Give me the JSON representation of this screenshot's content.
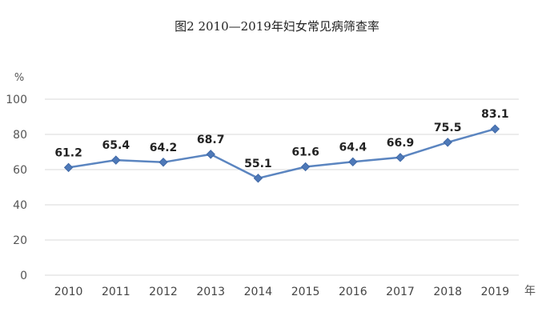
{
  "chart_data": {
    "type": "line",
    "title": "图2      2010—2019年妇女常见病筛查率",
    "y_unit": "%",
    "x_unit": "年",
    "categories": [
      "2010",
      "2011",
      "2012",
      "2013",
      "2014",
      "2015",
      "2016",
      "2017",
      "2018",
      "2019"
    ],
    "series": [
      {
        "values": [
          61.2,
          65.4,
          64.2,
          68.7,
          55.1,
          61.6,
          64.4,
          66.9,
          75.5,
          83.1
        ]
      }
    ],
    "data_labels": [
      "61.2",
      "65.4",
      "64.2",
      "68.7",
      "55.1",
      "61.6",
      "64.4",
      "66.9",
      "75.5",
      "83.1"
    ],
    "ylim": [
      0,
      100
    ],
    "yticks": [
      "0",
      "20",
      "40",
      "60",
      "80",
      "100"
    ],
    "grid": true,
    "colors": {
      "line": "#5b85c0",
      "marker": "#4e79b8"
    }
  }
}
